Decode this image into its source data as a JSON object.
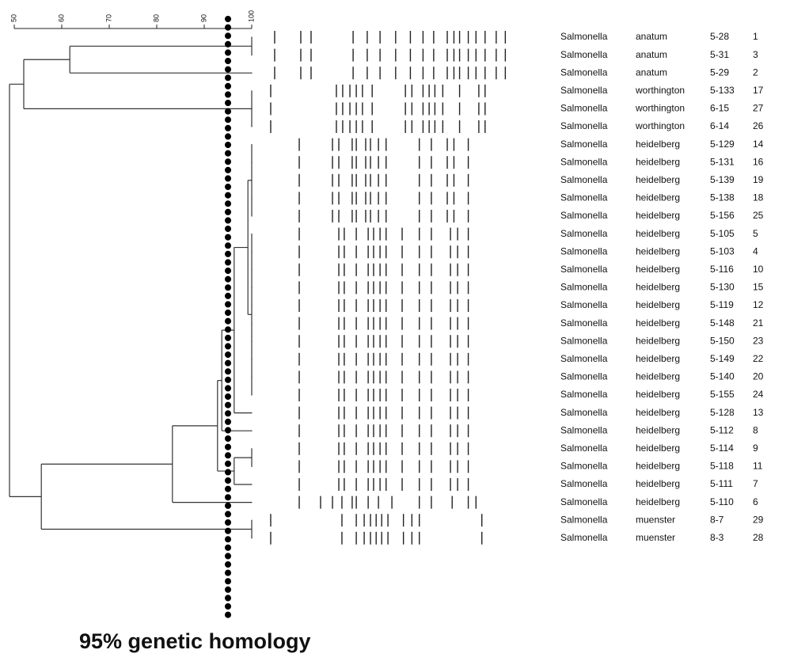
{
  "chart_data": {
    "type": "dendrogram",
    "annotation": "95% genetic homology",
    "cutoff": 95,
    "xlim": [
      50,
      100
    ],
    "xticks": [
      50,
      60,
      70,
      80,
      90,
      100
    ],
    "dendrogram": {
      "similarity": [
        100,
        61.7,
        52,
        100,
        100,
        49,
        100,
        100,
        100,
        100,
        99.2,
        100,
        100,
        100,
        100,
        100,
        100,
        100,
        100,
        100,
        96.3,
        93.7,
        92.8,
        100,
        96.3,
        83.3,
        55.7,
        100
      ]
    },
    "gel": {
      "log": true,
      "xlim": [
        1135,
        9
      ],
      "bands": [
        [
          1016,
          602,
          490,
          211,
          159,
          123,
          90,
          67,
          52,
          42,
          32,
          28,
          25,
          21,
          18,
          15,
          12,
          10
        ],
        [
          1016,
          602,
          490,
          211,
          159,
          123,
          90,
          67,
          52,
          42,
          32,
          28,
          25,
          21,
          18,
          15,
          12,
          10
        ],
        [
          1016,
          602,
          490,
          211,
          159,
          123,
          90,
          67,
          52,
          42,
          32,
          28,
          25,
          21,
          18,
          15,
          12,
          10
        ],
        [
          1100,
          295,
          260,
          225,
          198,
          175,
          144,
          74,
          65,
          52,
          46,
          41,
          35,
          25,
          17,
          15
        ],
        [
          1100,
          295,
          260,
          225,
          198,
          175,
          144,
          74,
          65,
          52,
          46,
          41,
          35,
          25,
          17,
          15
        ],
        [
          1100,
          295,
          260,
          225,
          198,
          175,
          144,
          74,
          65,
          52,
          46,
          41,
          35,
          25,
          17,
          15
        ],
        [
          621,
          319,
          281,
          215,
          198,
          164,
          149,
          127,
          109,
          56,
          44,
          32,
          28,
          21
        ],
        [
          621,
          319,
          281,
          215,
          198,
          164,
          149,
          127,
          109,
          56,
          44,
          32,
          28,
          21
        ],
        [
          621,
          319,
          281,
          215,
          198,
          164,
          149,
          127,
          109,
          56,
          44,
          32,
          28,
          21
        ],
        [
          621,
          319,
          281,
          215,
          198,
          164,
          149,
          127,
          109,
          56,
          44,
          32,
          28,
          21
        ],
        [
          621,
          319,
          281,
          215,
          198,
          164,
          149,
          127,
          109,
          56,
          44,
          32,
          28,
          21
        ],
        [
          621,
          281,
          252,
          198,
          156,
          140,
          123,
          109,
          79,
          56,
          44,
          30,
          26,
          21
        ],
        [
          621,
          281,
          252,
          198,
          156,
          140,
          123,
          109,
          79,
          56,
          44,
          30,
          26,
          21
        ],
        [
          621,
          281,
          252,
          198,
          156,
          140,
          123,
          109,
          79,
          56,
          44,
          30,
          26,
          21
        ],
        [
          621,
          281,
          252,
          198,
          156,
          140,
          123,
          109,
          79,
          56,
          44,
          30,
          26,
          21
        ],
        [
          621,
          281,
          252,
          198,
          156,
          140,
          123,
          109,
          79,
          56,
          44,
          30,
          26,
          21
        ],
        [
          621,
          281,
          252,
          198,
          156,
          140,
          123,
          109,
          79,
          56,
          44,
          30,
          26,
          21
        ],
        [
          621,
          281,
          252,
          198,
          156,
          140,
          123,
          109,
          79,
          56,
          44,
          30,
          26,
          21
        ],
        [
          621,
          281,
          252,
          198,
          156,
          140,
          123,
          109,
          79,
          56,
          44,
          30,
          26,
          21
        ],
        [
          621,
          281,
          252,
          198,
          156,
          140,
          123,
          109,
          79,
          56,
          44,
          30,
          26,
          21
        ],
        [
          621,
          281,
          252,
          198,
          156,
          140,
          123,
          109,
          79,
          56,
          44,
          30,
          26,
          21
        ],
        [
          621,
          281,
          252,
          198,
          156,
          140,
          123,
          109,
          79,
          56,
          44,
          30,
          26,
          21
        ],
        [
          621,
          281,
          252,
          198,
          156,
          140,
          123,
          109,
          79,
          56,
          44,
          30,
          26,
          21
        ],
        [
          621,
          281,
          252,
          198,
          156,
          140,
          123,
          109,
          79,
          56,
          44,
          30,
          26,
          21
        ],
        [
          621,
          281,
          252,
          198,
          156,
          140,
          123,
          109,
          79,
          56,
          44,
          30,
          26,
          21
        ],
        [
          621,
          281,
          252,
          198,
          156,
          140,
          123,
          109,
          79,
          56,
          44,
          30,
          26,
          21
        ],
        [
          621,
          405,
          319,
          264,
          215,
          198,
          156,
          127,
          97,
          56,
          44,
          29,
          21,
          18
        ],
        [
          1100,
          264,
          198,
          169,
          149,
          133,
          119,
          105,
          77,
          65,
          56,
          16
        ],
        [
          1100,
          264,
          198,
          169,
          149,
          133,
          119,
          105,
          77,
          65,
          56,
          16
        ]
      ]
    },
    "rows": [
      [
        "Salmonella",
        "anatum",
        "5-28",
        "1"
      ],
      [
        "Salmonella",
        "anatum",
        "5-31",
        "3"
      ],
      [
        "Salmonella",
        "anatum",
        "5-29",
        "2"
      ],
      [
        "Salmonella",
        "worthington",
        "5-133",
        "17"
      ],
      [
        "Salmonella",
        "worthington",
        "6-15",
        "27"
      ],
      [
        "Salmonella",
        "worthington",
        "6-14",
        "26"
      ],
      [
        "Salmonella",
        "heidelberg",
        "5-129",
        "14"
      ],
      [
        "Salmonella",
        "heidelberg",
        "5-131",
        "16"
      ],
      [
        "Salmonella",
        "heidelberg",
        "5-139",
        "19"
      ],
      [
        "Salmonella",
        "heidelberg",
        "5-138",
        "18"
      ],
      [
        "Salmonella",
        "heidelberg",
        "5-156",
        "25"
      ],
      [
        "Salmonella",
        "heidelberg",
        "5-105",
        "5"
      ],
      [
        "Salmonella",
        "heidelberg",
        "5-103",
        "4"
      ],
      [
        "Salmonella",
        "heidelberg",
        "5-116",
        "10"
      ],
      [
        "Salmonella",
        "heidelberg",
        "5-130",
        "15"
      ],
      [
        "Salmonella",
        "heidelberg",
        "5-119",
        "12"
      ],
      [
        "Salmonella",
        "heidelberg",
        "5-148",
        "21"
      ],
      [
        "Salmonella",
        "heidelberg",
        "5-150",
        "23"
      ],
      [
        "Salmonella",
        "heidelberg",
        "5-149",
        "22"
      ],
      [
        "Salmonella",
        "heidelberg",
        "5-140",
        "20"
      ],
      [
        "Salmonella",
        "heidelberg",
        "5-155",
        "24"
      ],
      [
        "Salmonella",
        "heidelberg",
        "5-128",
        "13"
      ],
      [
        "Salmonella",
        "heidelberg",
        "5-112",
        "8"
      ],
      [
        "Salmonella",
        "heidelberg",
        "5-114",
        "9"
      ],
      [
        "Salmonella",
        "heidelberg",
        "5-118",
        "11"
      ],
      [
        "Salmonella",
        "heidelberg",
        "5-111",
        "7"
      ],
      [
        "Salmonella",
        "heidelberg",
        "5-110",
        "6"
      ],
      [
        "Salmonella",
        "muenster",
        "8-7",
        "29"
      ],
      [
        "Salmonella",
        "muenster",
        "8-3",
        "28"
      ]
    ]
  }
}
